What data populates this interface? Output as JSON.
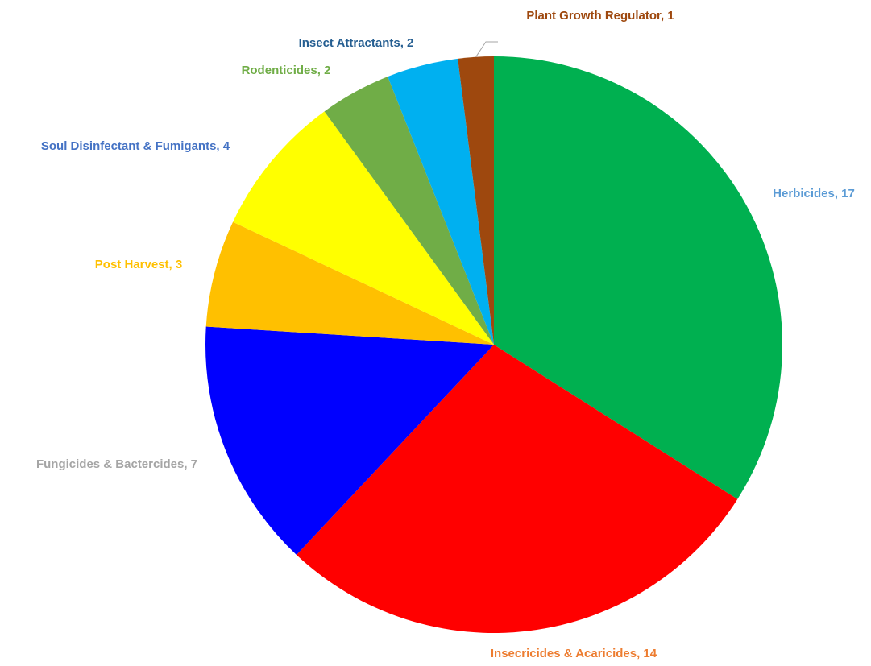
{
  "chart_data": {
    "type": "pie",
    "title": "",
    "start_angle_deg": 0,
    "direction": "clockwise",
    "legend": "none",
    "data_labels": "category-name, value",
    "slices": [
      {
        "label": "Herbicides",
        "value": 17,
        "display": "Herbicides, 17",
        "color": "#00B050",
        "label_color": "#5B9BD5"
      },
      {
        "label": "Insecricides & Acaricides",
        "value": 14,
        "display": "Insecricides & Acaricides, 14",
        "color": "#FF0000",
        "label_color": "#ED7D31"
      },
      {
        "label": "Fungicides & Bactercides",
        "value": 7,
        "display": "Fungicides & Bactercides, 7",
        "color": "#0000FF",
        "label_color": "#A5A5A5"
      },
      {
        "label": "Post Harvest",
        "value": 3,
        "display": "Post Harvest, 3",
        "color": "#FFC000",
        "label_color": "#FFC000"
      },
      {
        "label": "Soul Disinfectant & Fumigants",
        "value": 4,
        "display": "Soul Disinfectant & Fumigants, 4",
        "color": "#FFFF00",
        "label_color": "#4472C4"
      },
      {
        "label": "Rodenticides",
        "value": 2,
        "display": "Rodenticides, 2",
        "color": "#70AD47",
        "label_color": "#70AD47"
      },
      {
        "label": "Insect Attractants",
        "value": 2,
        "display": "Insect Attractants, 2",
        "color": "#00B0F0",
        "label_color": "#255E91"
      },
      {
        "label": "Plant Growth Regulator",
        "value": 1,
        "display": "Plant Growth Regulator, 1",
        "color": "#9E480E",
        "label_color": "#9E480E"
      }
    ]
  }
}
